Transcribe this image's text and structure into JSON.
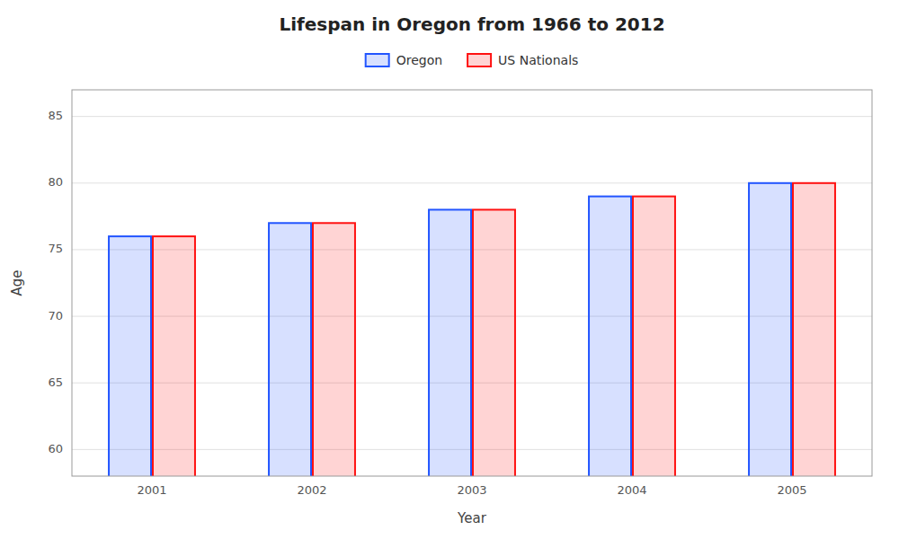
{
  "chart_data": {
    "type": "bar",
    "title": "Lifespan in Oregon from 1966 to 2012",
    "x_label": "Year",
    "y_label": "Age",
    "categories": [
      "2001",
      "2002",
      "2003",
      "2004",
      "2005"
    ],
    "series": [
      {
        "name": "Oregon",
        "color": "#2255ff",
        "values": [
          76,
          77,
          78,
          79,
          80
        ]
      },
      {
        "name": "US Nationals",
        "color": "#ff1111",
        "values": [
          76,
          77,
          78,
          79,
          80
        ]
      }
    ],
    "ylim": [
      58,
      87
    ],
    "yticks": [
      60,
      65,
      70,
      75,
      80,
      85
    ],
    "grid": true,
    "legend": "top"
  }
}
